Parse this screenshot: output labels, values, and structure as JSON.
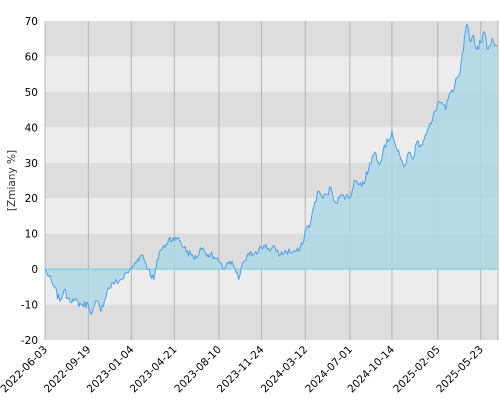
{
  "chart_data": {
    "type": "area",
    "title": "",
    "xlabel": "",
    "ylabel": "[Zmiany %]",
    "xlim": [
      "2022-06-03",
      "2025-07-05"
    ],
    "ylim": [
      -20,
      70
    ],
    "x_ticks": [
      "2022-06-03",
      "2022-09-19",
      "2023-01-04",
      "2023-04-21",
      "2023-08-10",
      "2023-11-24",
      "2024-03-12",
      "2024-07-01",
      "2024-10-14",
      "2025-02-05",
      "2025-05-23"
    ],
    "y_ticks": [
      -20,
      -10,
      0,
      10,
      20,
      30,
      40,
      50,
      60,
      70
    ],
    "grid": true,
    "legend": "none",
    "colors": {
      "line": "#4ea0e8",
      "fill": "#add8e6",
      "zero_line": "#6ecfe0",
      "band_light": "#ececec",
      "band_dark": "#dddddd",
      "grid_vertical": "#b4b4b4"
    },
    "series": [
      {
        "values": [
          [
            "2022-06-03",
            0
          ],
          [
            "2022-06-25",
            -5
          ],
          [
            "2022-07-10",
            -9
          ],
          [
            "2022-07-20",
            -6
          ],
          [
            "2022-07-30",
            -8
          ],
          [
            "2022-08-15",
            -9
          ],
          [
            "2022-09-01",
            -10
          ],
          [
            "2022-09-19",
            -10
          ],
          [
            "2022-09-28",
            -12.5
          ],
          [
            "2022-10-10",
            -9
          ],
          [
            "2022-10-20",
            -12
          ],
          [
            "2022-11-05",
            -6
          ],
          [
            "2022-11-20",
            -4
          ],
          [
            "2022-12-10",
            -3
          ],
          [
            "2022-12-25",
            -1
          ],
          [
            "2023-01-04",
            0
          ],
          [
            "2023-01-20",
            3
          ],
          [
            "2023-02-01",
            4
          ],
          [
            "2023-02-15",
            0
          ],
          [
            "2023-03-01",
            -3
          ],
          [
            "2023-03-15",
            5
          ],
          [
            "2023-04-01",
            7
          ],
          [
            "2023-04-10",
            9
          ],
          [
            "2023-04-21",
            8
          ],
          [
            "2023-05-01",
            9
          ],
          [
            "2023-05-15",
            6
          ],
          [
            "2023-06-01",
            4
          ],
          [
            "2023-06-15",
            3
          ],
          [
            "2023-06-25",
            6
          ],
          [
            "2023-07-05",
            5
          ],
          [
            "2023-07-20",
            4
          ],
          [
            "2023-08-01",
            3
          ],
          [
            "2023-08-10",
            2
          ],
          [
            "2023-08-20",
            0
          ],
          [
            "2023-09-01",
            2
          ],
          [
            "2023-09-15",
            1
          ],
          [
            "2023-09-28",
            -3
          ],
          [
            "2023-10-10",
            2
          ],
          [
            "2023-10-25",
            4
          ],
          [
            "2023-11-10",
            5
          ],
          [
            "2023-11-24",
            6
          ],
          [
            "2023-12-05",
            7
          ],
          [
            "2023-12-15",
            5
          ],
          [
            "2023-12-28",
            6
          ],
          [
            "2024-01-10",
            4
          ],
          [
            "2024-01-25",
            5
          ],
          [
            "2024-02-10",
            5
          ],
          [
            "2024-02-25",
            5
          ],
          [
            "2024-03-05",
            7
          ],
          [
            "2024-03-12",
            11
          ],
          [
            "2024-03-25",
            13
          ],
          [
            "2024-04-05",
            19
          ],
          [
            "2024-04-15",
            22
          ],
          [
            "2024-04-25",
            20
          ],
          [
            "2024-05-05",
            21
          ],
          [
            "2024-05-15",
            23
          ],
          [
            "2024-05-25",
            19
          ],
          [
            "2024-06-05",
            20
          ],
          [
            "2024-06-15",
            21
          ],
          [
            "2024-07-01",
            20
          ],
          [
            "2024-07-12",
            25
          ],
          [
            "2024-07-25",
            24
          ],
          [
            "2024-08-05",
            24
          ],
          [
            "2024-08-20",
            30
          ],
          [
            "2024-09-01",
            33
          ],
          [
            "2024-09-15",
            30
          ],
          [
            "2024-09-25",
            35
          ],
          [
            "2024-10-05",
            36
          ],
          [
            "2024-10-14",
            39
          ],
          [
            "2024-10-25",
            34
          ],
          [
            "2024-11-05",
            31
          ],
          [
            "2024-11-15",
            29
          ],
          [
            "2024-11-25",
            33
          ],
          [
            "2024-12-05",
            31
          ],
          [
            "2024-12-15",
            36
          ],
          [
            "2024-12-25",
            35
          ],
          [
            "2025-01-05",
            38
          ],
          [
            "2025-01-20",
            41
          ],
          [
            "2025-02-05",
            47
          ],
          [
            "2025-02-15",
            47
          ],
          [
            "2025-02-25",
            45
          ],
          [
            "2025-03-05",
            49
          ],
          [
            "2025-03-15",
            50
          ],
          [
            "2025-03-25",
            54
          ],
          [
            "2025-04-01",
            55
          ],
          [
            "2025-04-10",
            62
          ],
          [
            "2025-04-15",
            67
          ],
          [
            "2025-04-20",
            69
          ],
          [
            "2025-04-28",
            64
          ],
          [
            "2025-05-05",
            66
          ],
          [
            "2025-05-12",
            62
          ],
          [
            "2025-05-23",
            64
          ],
          [
            "2025-06-01",
            67
          ],
          [
            "2025-06-10",
            62
          ],
          [
            "2025-06-20",
            65
          ],
          [
            "2025-07-03",
            63
          ]
        ]
      }
    ]
  }
}
